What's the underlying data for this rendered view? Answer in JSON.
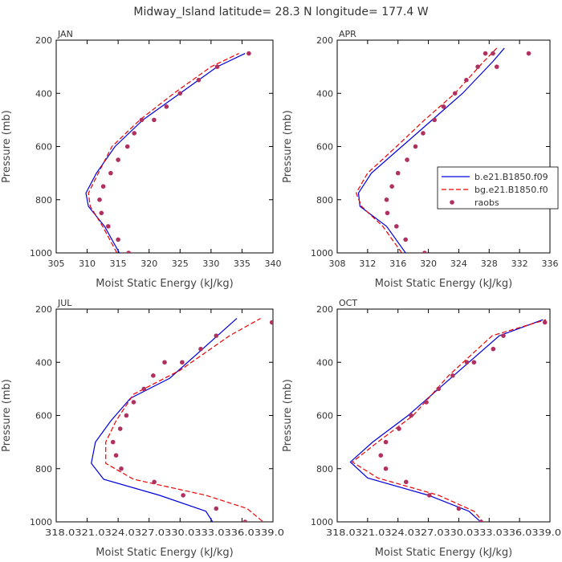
{
  "figure_title": "Midway_Island  latitude= 28.3 N longitude= 177.4 W",
  "legend": {
    "entries": [
      {
        "label": "b.e21.B1850.f09",
        "style": "solid",
        "color": "#0000dd"
      },
      {
        "label": "bg.e21.B1850.f0",
        "style": "dashed",
        "color": "#ee0000"
      },
      {
        "label": "raobs",
        "style": "dot",
        "color": "#b03060"
      }
    ]
  },
  "chart_data": [
    {
      "type": "line",
      "panel": "JAN",
      "xlabel": "Moist Static Energy (kJ/kg)",
      "ylabel": "Pressure (mb)",
      "xlim": [
        305,
        340
      ],
      "ylim": [
        1000,
        200
      ],
      "xticks": [
        305,
        310,
        315,
        320,
        325,
        330,
        335,
        340
      ],
      "xtick_labels": [
        "305",
        "310",
        "315",
        "320",
        "325",
        "330",
        "335",
        "340"
      ],
      "yticks": [
        200,
        400,
        600,
        800,
        1000
      ],
      "ytick_labels": [
        "200",
        "400",
        "600",
        "800",
        "1000"
      ],
      "series": [
        {
          "name": "b.e21.B1850.f09",
          "x": [
            315.2,
            312.8,
            310.2,
            309.8,
            311.5,
            314.5,
            319.0,
            325.0,
            331.0,
            335.5
          ],
          "y": [
            1000,
            900,
            825,
            775,
            700,
            600,
            500,
            400,
            300,
            250
          ]
        },
        {
          "name": "bg.e21.B1850.f0",
          "x": [
            314.8,
            312.5,
            310.5,
            310.2,
            311.8,
            314.0,
            318.5,
            324.0,
            330.0,
            334.5
          ],
          "y": [
            1000,
            900,
            825,
            775,
            700,
            600,
            500,
            400,
            300,
            250
          ]
        },
        {
          "name": "raobs",
          "x": [
            316.7,
            315.0,
            313.4,
            312.3,
            312.0,
            312.6,
            313.8,
            315.0,
            316.5,
            317.6,
            318.8,
            320.8,
            322.8,
            325.0,
            328.0,
            331.0,
            336.1
          ],
          "y": [
            1000,
            950,
            900,
            850,
            800,
            750,
            700,
            650,
            600,
            550,
            500,
            500,
            450,
            400,
            350,
            300,
            250
          ]
        }
      ]
    },
    {
      "type": "line",
      "panel": "APR",
      "xlabel": "Moist Static Energy (kJ/kg)",
      "ylabel": "Pressure (mb)",
      "xlim": [
        308,
        336
      ],
      "ylim": [
        1000,
        200
      ],
      "xticks": [
        308,
        312,
        316,
        320,
        324,
        328,
        332,
        336
      ],
      "xtick_labels": [
        "308",
        "312",
        "316",
        "320",
        "324",
        "328",
        "332",
        "336"
      ],
      "yticks": [
        200,
        400,
        600,
        800,
        1000
      ],
      "ytick_labels": [
        "200",
        "400",
        "600",
        "800",
        "1000"
      ],
      "series": [
        {
          "name": "b.e21.B1850.f09",
          "x": [
            317.0,
            314.5,
            311.0,
            310.8,
            312.5,
            316.5,
            320.5,
            324.5,
            328.5,
            330.0
          ],
          "y": [
            1000,
            900,
            825,
            775,
            700,
            600,
            500,
            400,
            280,
            230
          ]
        },
        {
          "name": "bg.e21.B1850.f0",
          "x": [
            316.5,
            314.0,
            311.2,
            310.5,
            312.0,
            315.8,
            319.5,
            323.5,
            327.3,
            329.0
          ],
          "y": [
            1000,
            900,
            825,
            775,
            700,
            600,
            500,
            400,
            280,
            230
          ]
        },
        {
          "name": "raobs",
          "x": [
            319.5,
            317.0,
            315.8,
            314.6,
            314.5,
            315.2,
            316.0,
            317.2,
            318.3,
            319.3,
            320.8,
            322.0,
            323.5,
            325.0,
            326.5,
            327.5,
            328.5,
            329.0,
            333.2
          ],
          "y": [
            1000,
            950,
            900,
            850,
            800,
            750,
            700,
            650,
            600,
            550,
            500,
            450,
            400,
            350,
            300,
            250,
            250,
            300,
            250
          ]
        }
      ]
    },
    {
      "type": "line",
      "panel": "JUL",
      "xlabel": "Moist Static Energy (kJ/kg)",
      "ylabel": "Pressure (mb)",
      "xlim": [
        318.0,
        339.0
      ],
      "ylim": [
        1000,
        200
      ],
      "xticks": [
        318.0,
        321.0,
        324.0,
        327.0,
        330.0,
        333.0,
        336.0,
        339.0
      ],
      "xtick_labels": [
        "318.0",
        "321.0",
        "324.0",
        "327.0",
        "330.0",
        "333.0",
        "336.0",
        "339.0"
      ],
      "tick_label_text": "318.0321.0324.0327.0330.0333.0336.0339.0",
      "yticks": [
        200,
        400,
        600,
        800,
        1000
      ],
      "ytick_labels": [
        "200",
        "400",
        "600",
        "800",
        "1000"
      ],
      "series": [
        {
          "name": "b.e21.B1850.f09",
          "x": [
            333.4,
            332.5,
            328.0,
            322.6,
            321.4,
            321.8,
            323.3,
            325.2,
            329.0,
            335.5
          ],
          "y": [
            1015,
            960,
            900,
            840,
            780,
            700,
            620,
            535,
            460,
            235
          ]
        },
        {
          "name": "bg.e21.B1850.f0",
          "x": [
            338.5,
            336.5,
            332.5,
            325.5,
            322.8,
            322.8,
            323.8,
            325.5,
            330.0,
            334.8,
            337.8
          ],
          "y": [
            1015,
            950,
            900,
            840,
            780,
            700,
            620,
            520,
            430,
            300,
            235
          ]
        },
        {
          "name": "raobs",
          "x": [
            336.3,
            333.5,
            330.3,
            327.5,
            324.3,
            323.8,
            323.5,
            324.2,
            324.8,
            325.5,
            326.5,
            327.4,
            328.5,
            330.2,
            332.0,
            333.5,
            338.9
          ],
          "y": [
            1000,
            950,
            900,
            850,
            800,
            750,
            700,
            650,
            600,
            550,
            500,
            450,
            400,
            400,
            350,
            300,
            250
          ]
        }
      ]
    },
    {
      "type": "line",
      "panel": "OCT",
      "xlabel": "Moist Static Energy (kJ/kg)",
      "ylabel": "Pressure (mb)",
      "xlim": [
        318.0,
        339.0
      ],
      "ylim": [
        1000,
        200
      ],
      "xticks": [
        318.0,
        321.0,
        324.0,
        327.0,
        330.0,
        333.0,
        336.0,
        339.0
      ],
      "xtick_labels": [
        "318.0",
        "321.0",
        "324.0",
        "327.0",
        "330.0",
        "333.0",
        "336.0",
        "339.0"
      ],
      "tick_label_text": "318.0321.0324.0327.0330.0333.0336.0339.0",
      "yticks": [
        200,
        400,
        600,
        800,
        1000
      ],
      "ytick_labels": [
        "200",
        "400",
        "600",
        "800",
        "1000"
      ],
      "series": [
        {
          "name": "b.e21.B1850.f09",
          "x": [
            332.3,
            331.0,
            327.0,
            321.0,
            319.3,
            321.5,
            325.0,
            329.5,
            334.0,
            338.3
          ],
          "y": [
            1005,
            960,
            900,
            835,
            775,
            700,
            600,
            450,
            300,
            240
          ]
        },
        {
          "name": "bg.e21.B1850.f0",
          "x": [
            332.5,
            331.5,
            328.0,
            322.0,
            319.5,
            322.0,
            325.5,
            329.0,
            333.3,
            338.6
          ],
          "y": [
            1005,
            960,
            900,
            835,
            775,
            700,
            600,
            450,
            300,
            240
          ]
        },
        {
          "name": "raobs",
          "x": [
            332.2,
            330.0,
            327.1,
            324.8,
            322.8,
            322.3,
            322.8,
            324.1,
            325.3,
            326.8,
            328.0,
            329.4,
            330.8,
            331.5,
            333.4,
            334.4,
            338.5
          ],
          "y": [
            1000,
            950,
            900,
            850,
            800,
            750,
            700,
            650,
            600,
            550,
            500,
            450,
            400,
            400,
            350,
            300,
            250
          ]
        }
      ]
    }
  ]
}
